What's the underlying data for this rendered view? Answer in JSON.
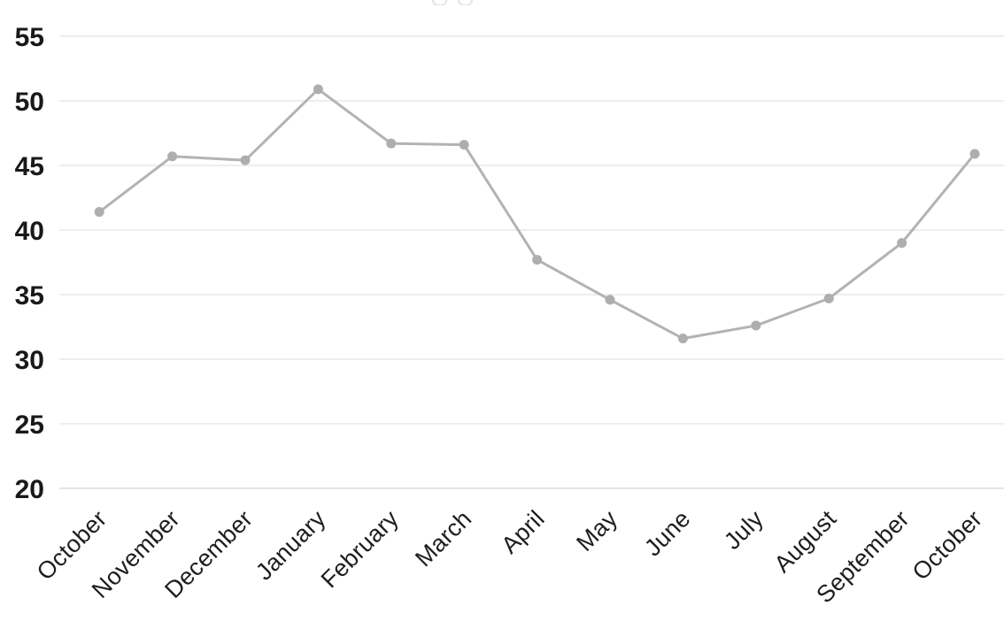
{
  "chart_data": {
    "type": "line",
    "title": "",
    "xlabel": "",
    "ylabel": "",
    "categories": [
      "October",
      "November",
      "December",
      "January",
      "February",
      "March",
      "April",
      "May",
      "June",
      "July",
      "August",
      "September",
      "October"
    ],
    "values": [
      41.4,
      45.7,
      45.4,
      50.9,
      46.7,
      46.6,
      37.7,
      34.6,
      31.6,
      32.6,
      34.7,
      39.0,
      45.9
    ],
    "ylim": [
      20,
      55
    ],
    "yticks": [
      20,
      25,
      30,
      35,
      40,
      45,
      50,
      55
    ],
    "grid": true,
    "legend": false,
    "x_tick_rotation_deg": -45,
    "colors": {
      "line": "#b3b3b3",
      "marker": "#aeaeae",
      "gridline": "#e3e3e3",
      "axis_line": "#d7d7d7",
      "tick_label": "#191919"
    }
  }
}
